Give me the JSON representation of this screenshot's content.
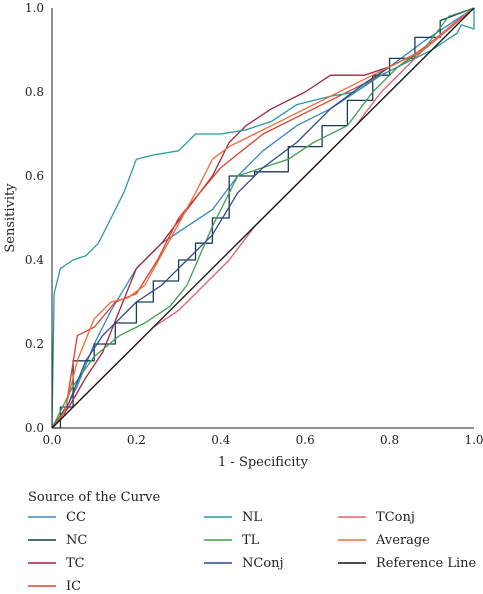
{
  "chart_data": {
    "type": "line",
    "title": "",
    "xlabel": "1 - Specificity",
    "ylabel": "Sensitivity",
    "xlim": [
      0,
      1
    ],
    "ylim": [
      0,
      1
    ],
    "x_ticks": [
      "0.0",
      "0.2",
      "0.4",
      "0.6",
      "0.8",
      "1.0"
    ],
    "y_ticks": [
      "0.0",
      "0.2",
      "0.4",
      "0.6",
      "0.8",
      "1.0"
    ],
    "grid": false,
    "legend_title": "Source of the Curve",
    "legend_position": "bottom",
    "series": [
      {
        "name": "CC",
        "color": "#3a86c0",
        "x": [
          0,
          0.03,
          0.06,
          0.1,
          0.14,
          0.2,
          0.26,
          0.32,
          0.38,
          0.44,
          0.5,
          0.58,
          0.66,
          0.72,
          0.8,
          0.88,
          0.94,
          1.0
        ],
        "y": [
          0,
          0.04,
          0.1,
          0.2,
          0.28,
          0.38,
          0.44,
          0.48,
          0.52,
          0.6,
          0.66,
          0.72,
          0.76,
          0.8,
          0.86,
          0.92,
          0.96,
          1.0
        ]
      },
      {
        "name": "NC",
        "color": "#173d52",
        "x": [
          0,
          0.02,
          0.02,
          0.05,
          0.05,
          0.1,
          0.1,
          0.15,
          0.15,
          0.2,
          0.2,
          0.24,
          0.24,
          0.3,
          0.3,
          0.34,
          0.34,
          0.38,
          0.38,
          0.42,
          0.42,
          0.48,
          0.48,
          0.56,
          0.56,
          0.64,
          0.64,
          0.7,
          0.7,
          0.76,
          0.76,
          0.8,
          0.8,
          0.86,
          0.86,
          0.92,
          0.92,
          1.0
        ],
        "y": [
          0,
          0,
          0.05,
          0.05,
          0.16,
          0.16,
          0.2,
          0.2,
          0.25,
          0.25,
          0.3,
          0.3,
          0.35,
          0.35,
          0.4,
          0.4,
          0.44,
          0.44,
          0.5,
          0.5,
          0.6,
          0.6,
          0.61,
          0.61,
          0.67,
          0.67,
          0.72,
          0.72,
          0.78,
          0.78,
          0.84,
          0.84,
          0.88,
          0.88,
          0.93,
          0.93,
          0.97,
          1.0
        ]
      },
      {
        "name": "TC",
        "color": "#a3253d",
        "x": [
          0,
          0.04,
          0.08,
          0.12,
          0.16,
          0.2,
          0.26,
          0.32,
          0.38,
          0.42,
          0.46,
          0.52,
          0.6,
          0.66,
          0.74,
          0.8,
          0.88,
          0.94,
          1.0
        ],
        "y": [
          0,
          0.05,
          0.12,
          0.18,
          0.28,
          0.38,
          0.44,
          0.52,
          0.6,
          0.68,
          0.72,
          0.76,
          0.8,
          0.84,
          0.84,
          0.86,
          0.9,
          0.95,
          1.0
        ]
      },
      {
        "name": "IC",
        "color": "#d9432d",
        "x": [
          0,
          0.03,
          0.06,
          0.1,
          0.15,
          0.2,
          0.25,
          0.3,
          0.35,
          0.4,
          0.45,
          0.5,
          0.58,
          0.66,
          0.74,
          0.82,
          0.9,
          1.0
        ],
        "y": [
          0,
          0.03,
          0.22,
          0.24,
          0.3,
          0.32,
          0.4,
          0.5,
          0.56,
          0.62,
          0.66,
          0.7,
          0.74,
          0.78,
          0.82,
          0.86,
          0.92,
          1.0
        ]
      },
      {
        "name": "NL",
        "color": "#2a9a9e",
        "x": [
          0,
          0.005,
          0.02,
          0.05,
          0.08,
          0.11,
          0.14,
          0.17,
          0.2,
          0.24,
          0.3,
          0.34,
          0.4,
          0.46,
          0.52,
          0.58,
          0.66,
          0.72,
          0.78,
          0.84,
          0.9,
          0.96,
          0.97,
          1.0,
          1.0
        ],
        "y": [
          0,
          0.32,
          0.38,
          0.4,
          0.41,
          0.44,
          0.5,
          0.56,
          0.64,
          0.65,
          0.66,
          0.7,
          0.7,
          0.71,
          0.73,
          0.77,
          0.79,
          0.8,
          0.84,
          0.87,
          0.9,
          0.94,
          0.96,
          0.95,
          1.0
        ]
      },
      {
        "name": "TL",
        "color": "#3f9e4f",
        "x": [
          0,
          0.05,
          0.1,
          0.16,
          0.22,
          0.28,
          0.32,
          0.38,
          0.44,
          0.5,
          0.56,
          0.62,
          0.7,
          0.76,
          0.82,
          0.88,
          0.94,
          1.0
        ],
        "y": [
          0,
          0.1,
          0.17,
          0.22,
          0.25,
          0.29,
          0.34,
          0.48,
          0.6,
          0.62,
          0.64,
          0.68,
          0.72,
          0.8,
          0.86,
          0.9,
          0.98,
          1.0
        ]
      },
      {
        "name": "NConj",
        "color": "#2d4a8e",
        "x": [
          0,
          0.04,
          0.08,
          0.12,
          0.16,
          0.2,
          0.26,
          0.32,
          0.38,
          0.44,
          0.5,
          0.58,
          0.66,
          0.74,
          0.8,
          0.88,
          0.94,
          1.0
        ],
        "y": [
          0,
          0.06,
          0.16,
          0.22,
          0.26,
          0.3,
          0.34,
          0.4,
          0.46,
          0.56,
          0.62,
          0.68,
          0.76,
          0.82,
          0.86,
          0.9,
          0.95,
          1.0
        ]
      },
      {
        "name": "TConj",
        "color": "#e0606e",
        "x": [
          0,
          0.06,
          0.12,
          0.18,
          0.24,
          0.3,
          0.36,
          0.42,
          0.48,
          0.54,
          0.6,
          0.66,
          0.72,
          0.78,
          0.84,
          0.9,
          0.96,
          1.0
        ],
        "y": [
          0,
          0.06,
          0.12,
          0.18,
          0.24,
          0.28,
          0.34,
          0.4,
          0.48,
          0.54,
          0.6,
          0.66,
          0.72,
          0.8,
          0.86,
          0.92,
          0.97,
          1.0
        ]
      },
      {
        "name": "Average",
        "color": "#ef6a3a",
        "x": [
          0,
          0.03,
          0.06,
          0.1,
          0.14,
          0.18,
          0.22,
          0.28,
          0.34,
          0.38,
          0.42,
          0.48,
          0.56,
          0.64,
          0.72,
          0.8,
          0.88,
          0.94,
          1.0
        ],
        "y": [
          0,
          0.04,
          0.16,
          0.26,
          0.3,
          0.31,
          0.34,
          0.45,
          0.56,
          0.64,
          0.67,
          0.7,
          0.74,
          0.78,
          0.82,
          0.86,
          0.9,
          0.95,
          1.0
        ]
      },
      {
        "name": "Reference Line",
        "color": "#111111",
        "x": [
          0,
          1
        ],
        "y": [
          0,
          1
        ]
      }
    ]
  }
}
